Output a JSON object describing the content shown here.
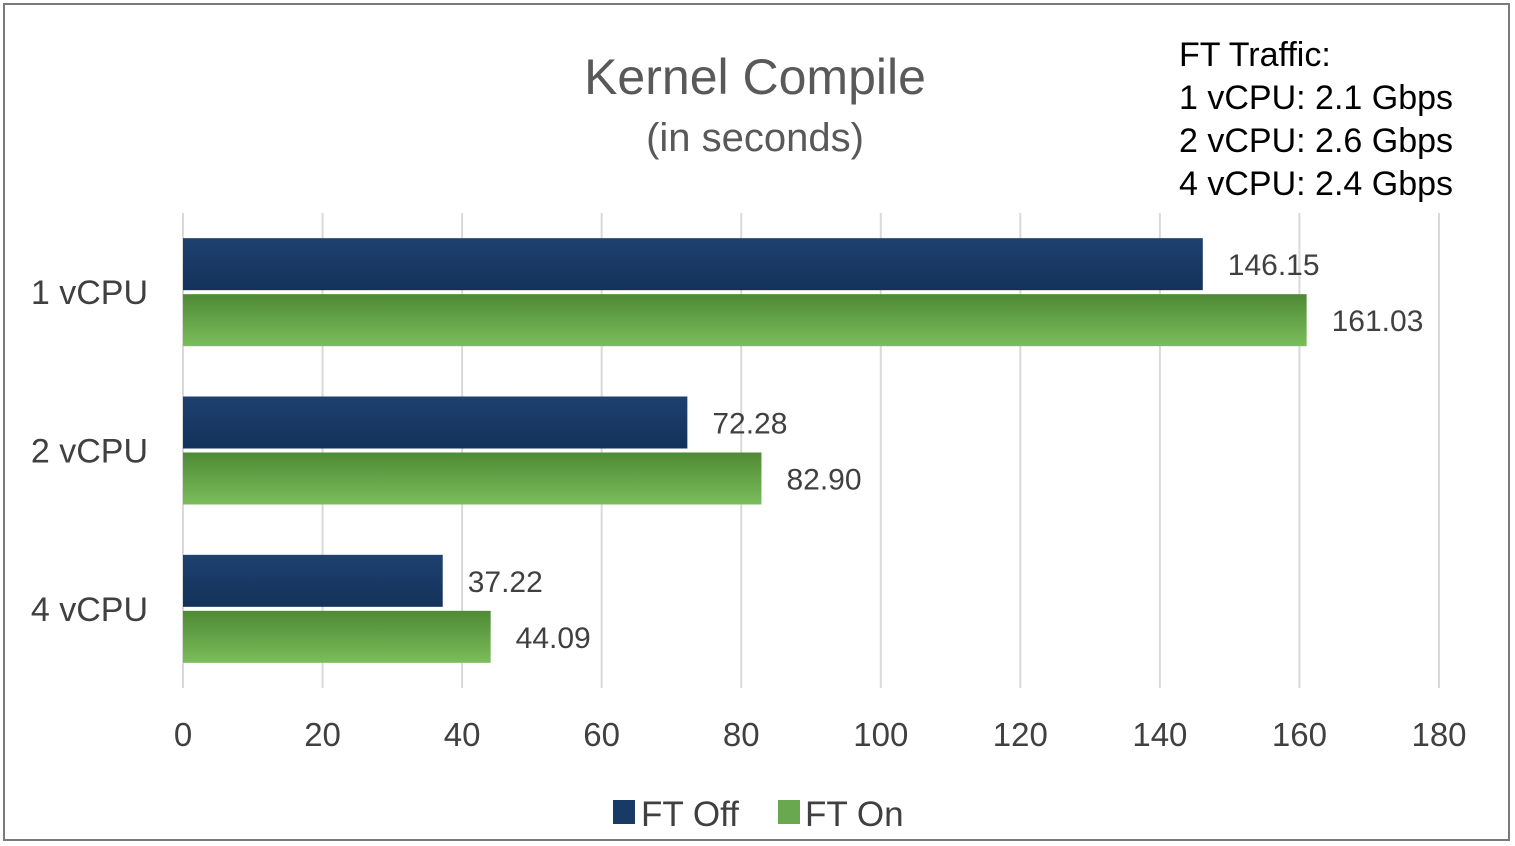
{
  "chart_data": {
    "type": "bar",
    "orientation": "horizontal",
    "title": "Kernel Compile",
    "subtitle": "(in seconds)",
    "categories": [
      "1 vCPU",
      "2 vCPU",
      "4 vCPU"
    ],
    "series": [
      {
        "name": "FT Off",
        "color": "#1a3a66",
        "values": [
          146.15,
          72.28,
          37.22
        ],
        "labels": [
          "146.15",
          "72.28",
          "37.22"
        ]
      },
      {
        "name": "FT On",
        "color": "#6aa84f",
        "values": [
          161.03,
          82.9,
          44.09
        ],
        "labels": [
          "161.03",
          "82.90",
          "44.09"
        ]
      }
    ],
    "xlim": [
      0,
      180
    ],
    "xticks": [
      0,
      20,
      40,
      60,
      80,
      100,
      120,
      140,
      160,
      180
    ],
    "grid": "vertical",
    "legend_position": "bottom",
    "annotation": {
      "lines": [
        "FT Traffic:",
        "1 vCPU: 2.1 Gbps",
        "2 vCPU: 2.6 Gbps",
        "4 vCPU: 2.4 Gbps"
      ]
    }
  }
}
